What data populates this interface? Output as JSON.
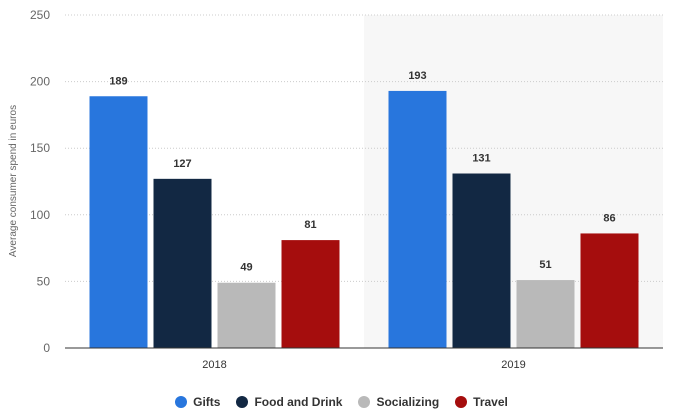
{
  "chart_data": {
    "type": "bar",
    "categories": [
      "2018",
      "2019"
    ],
    "series": [
      {
        "name": "Gifts",
        "values": [
          189,
          193
        ],
        "color": "#2876dd"
      },
      {
        "name": "Food and Drink",
        "values": [
          127,
          131
        ],
        "color": "#122843"
      },
      {
        "name": "Socializing",
        "values": [
          49,
          51
        ],
        "color": "#b9b9b9"
      },
      {
        "name": "Travel",
        "values": [
          81,
          86
        ],
        "color": "#a50d0d"
      }
    ],
    "title": "",
    "xlabel": "",
    "ylabel": "Average consumer spend in euros",
    "ylim": [
      0,
      250
    ],
    "yticks": [
      0,
      50,
      100,
      150,
      200,
      250
    ],
    "grid": true,
    "legend_position": "bottom",
    "data_labels": true
  }
}
